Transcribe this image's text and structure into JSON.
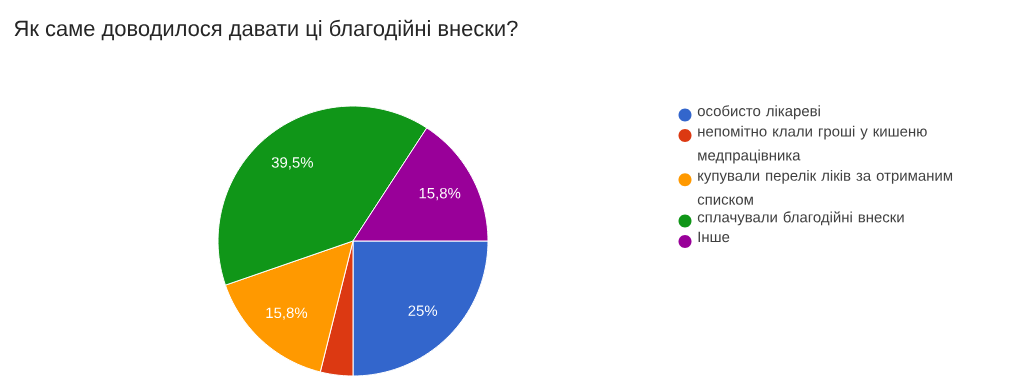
{
  "chart_data": {
    "type": "pie",
    "title": "Як саме доводилося давати ці благодійні внески?",
    "categories": [
      "особисто лікареві",
      "непомітно клали гроші у кишеню медпрацівника",
      "купували перелік ліків за отриманим списком",
      "сплачували благодійні внески",
      "Інше"
    ],
    "values": [
      25,
      3.9,
      15.8,
      39.5,
      15.8
    ],
    "value_labels": [
      "25%",
      null,
      "15,8%",
      "39,5%",
      "15,8%"
    ],
    "colors": [
      "#3366cc",
      "#dc3912",
      "#ff9900",
      "#109618",
      "#990099"
    ],
    "legend": "right"
  }
}
